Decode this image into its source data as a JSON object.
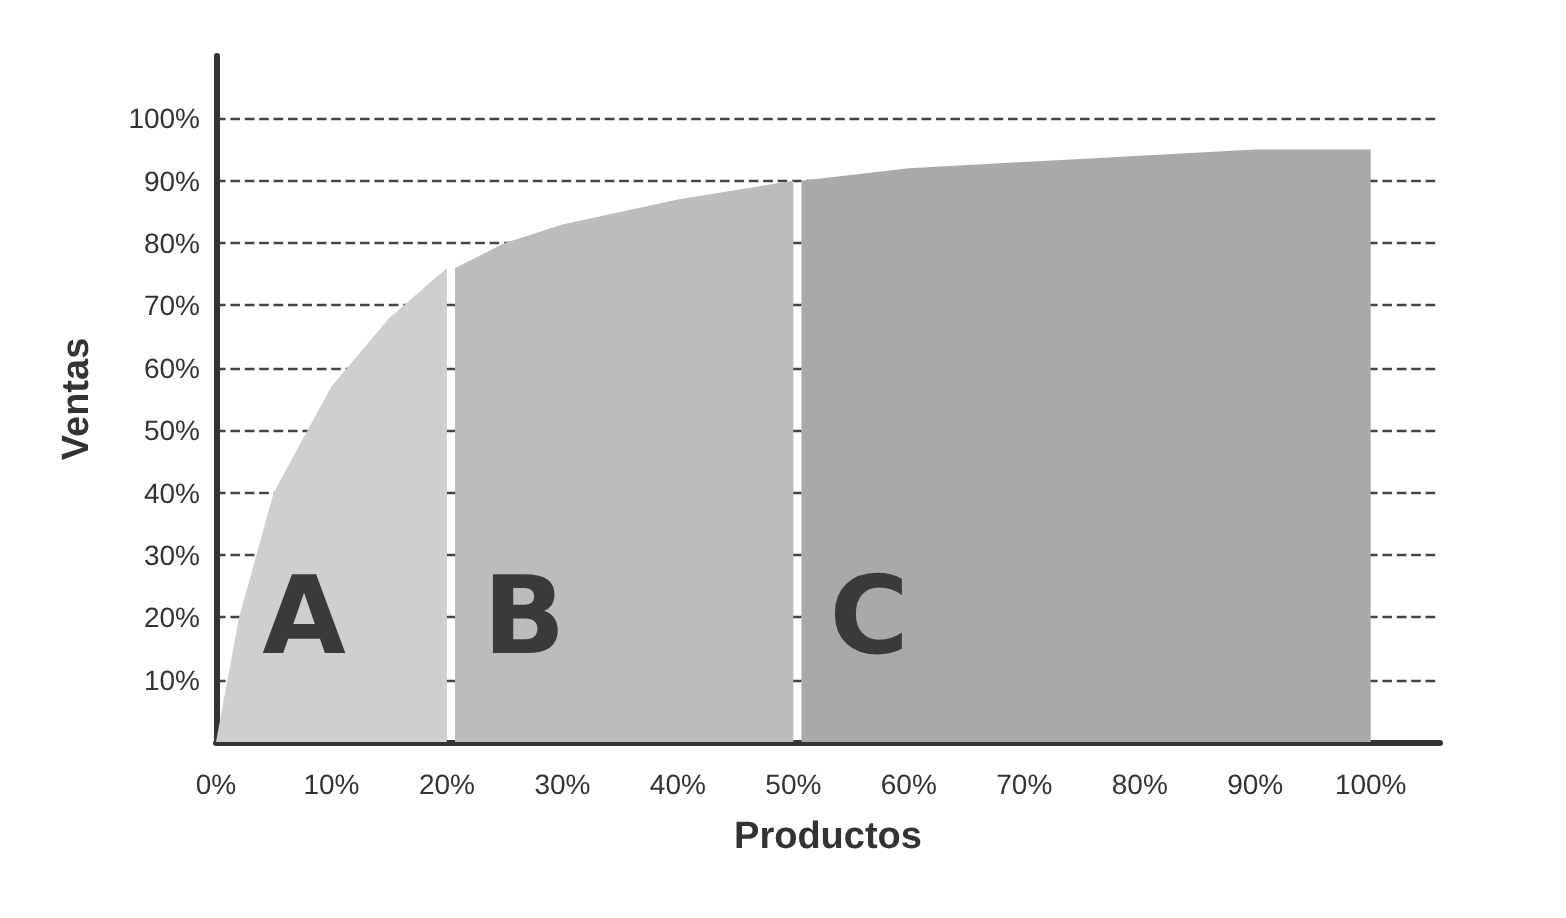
{
  "chart_data": {
    "type": "area",
    "xlabel": "Productos",
    "ylabel": "Ventas",
    "xlim": [
      0,
      106
    ],
    "xticks": [
      {
        "value": 0,
        "label": "0%"
      },
      {
        "value": 10,
        "label": "10%"
      },
      {
        "value": 20,
        "label": "20%"
      },
      {
        "value": 30,
        "label": "30%"
      },
      {
        "value": 40,
        "label": "40%"
      },
      {
        "value": 50,
        "label": "50%"
      },
      {
        "value": 60,
        "label": "60%"
      },
      {
        "value": 70,
        "label": "70%"
      },
      {
        "value": 80,
        "label": "80%"
      },
      {
        "value": 90,
        "label": "90%"
      },
      {
        "value": 100,
        "label": "100%"
      }
    ],
    "ylim": [
      0,
      110
    ],
    "yticks": [
      {
        "value": 10,
        "label": "10%"
      },
      {
        "value": 20,
        "label": "20%"
      },
      {
        "value": 30,
        "label": "30%"
      },
      {
        "value": 40,
        "label": "40%"
      },
      {
        "value": 50,
        "label": "50%"
      },
      {
        "value": 60,
        "label": "60%"
      },
      {
        "value": 70,
        "label": "70%"
      },
      {
        "value": 80,
        "label": "80%"
      },
      {
        "value": 90,
        "label": "90%"
      },
      {
        "value": 100,
        "label": "100%"
      }
    ],
    "series": [
      {
        "color": "#cfcfcf",
        "x": [
          0,
          2,
          5,
          10,
          15,
          20
        ],
        "values": [
          0,
          20,
          40,
          57,
          68,
          76
        ]
      },
      {
        "color": "#bcbcbc",
        "x": [
          20.7,
          25,
          30,
          40,
          50
        ],
        "values": [
          76,
          80,
          83,
          87,
          90
        ]
      },
      {
        "color": "#a9a9a9",
        "x": [
          50.7,
          60,
          70,
          80,
          90,
          100
        ],
        "values": [
          90,
          92,
          93,
          94,
          95,
          95
        ]
      }
    ],
    "annotations": [
      "A",
      "B",
      "C"
    ],
    "grid": "y",
    "marker": "none"
  }
}
